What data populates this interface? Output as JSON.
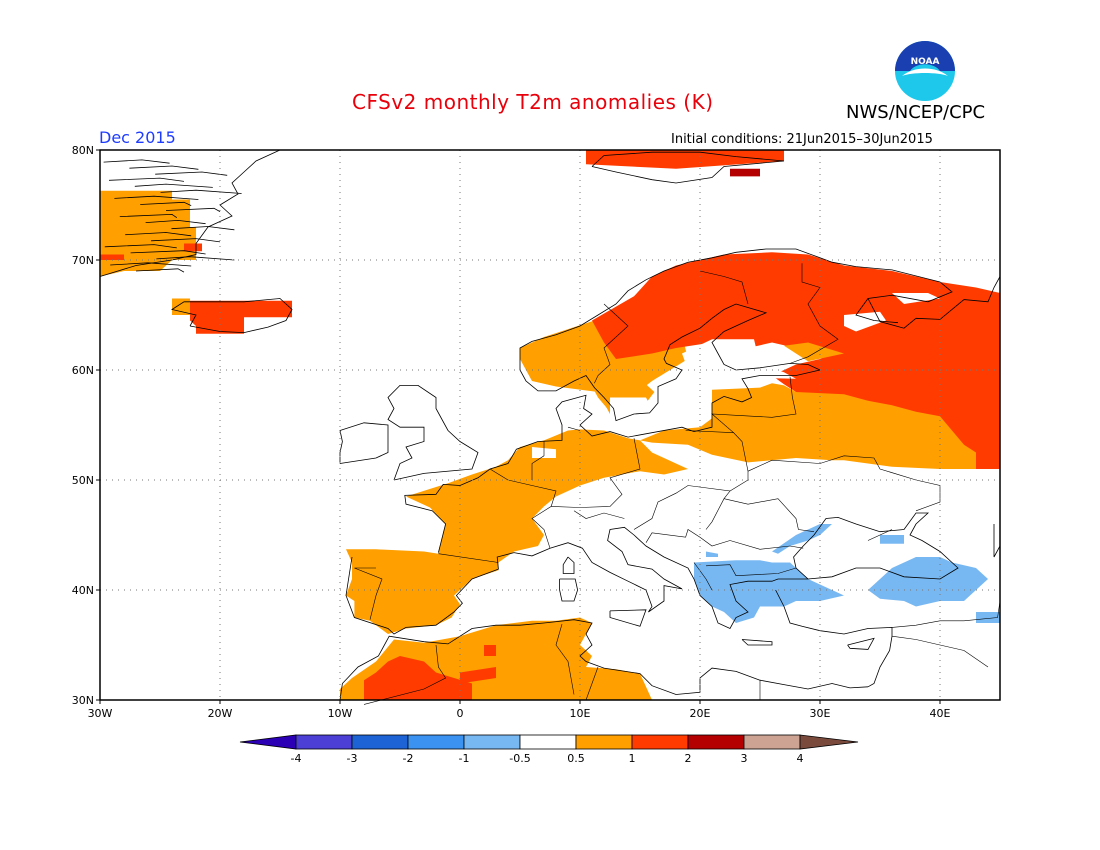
{
  "title": "CFSv2 monthly T2m anomalies (K)",
  "agency": "NWS/NCEP/CPC",
  "logo_text": "NOAA",
  "forecast_month": "Dec 2015",
  "initial_conditions": "Initial conditions: 21Jun2015–30Jun2015",
  "map": {
    "lon_range": [
      -30,
      45
    ],
    "lat_range": [
      30,
      80
    ],
    "lat_ticks": [
      "30N",
      "40N",
      "50N",
      "60N",
      "70N",
      "80N"
    ],
    "lon_ticks": [
      "30W",
      "20W",
      "10W",
      "0",
      "10E",
      "20E",
      "30E",
      "40E"
    ],
    "grid": "dotted"
  },
  "colorbar": {
    "labels": [
      "-4",
      "-3",
      "-2",
      "-1",
      "-0.5",
      "0.5",
      "1",
      "2",
      "3",
      "4"
    ],
    "colors": [
      "#2c00b4",
      "#4b3fd6",
      "#1d63d6",
      "#3c92f0",
      "#78b8f2",
      "#ffffff",
      "#ff9f00",
      "#ff3b00",
      "#b40000",
      "#cda494",
      "#7a4b3c"
    ]
  },
  "chart_data": {
    "type": "heatmap",
    "title": "CFSv2 monthly T2m anomalies (K)",
    "variable": "T2m anomaly (K)",
    "forecast_month": "Dec 2015",
    "regions": [
      {
        "area": "Scandinavia, Finland, NW Russia",
        "category": "1 to 2"
      },
      {
        "area": "Svalbard",
        "category": "1 to 2"
      },
      {
        "area": "Iceland",
        "category": "1 to 2"
      },
      {
        "area": "East Greenland",
        "category": "0.5 to 1"
      },
      {
        "area": "France, Iberia, Benelux",
        "category": "0.5 to 1"
      },
      {
        "area": "Germany, Poland, Baltic states, Belarus",
        "category": "0.5 to 1"
      },
      {
        "area": "Central Russia",
        "category": "0.5 to 1"
      },
      {
        "area": "North Africa (Morocco, Algeria)",
        "category": "0.5 to 1"
      },
      {
        "area": "Morocco Atlas region",
        "category": "1 to 2"
      },
      {
        "area": "Central & Southeast Europe, Italy",
        "category": "-0.5 to 0.5"
      },
      {
        "area": "Balkans, Aegean, Black Sea coasts, Turkey",
        "category": "-1 to -0.5"
      }
    ]
  }
}
